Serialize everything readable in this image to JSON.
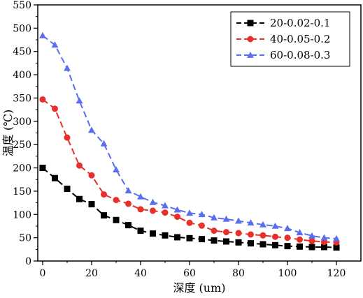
{
  "chart_data": {
    "type": "line",
    "xlabel": "深度 (um)",
    "ylabel": "温度 (℃)",
    "xlim": [
      -2,
      130
    ],
    "ylim": [
      0,
      550
    ],
    "xticks": [
      0,
      20,
      40,
      60,
      80,
      100,
      120
    ],
    "yticks": [
      0,
      50,
      100,
      150,
      200,
      250,
      300,
      350,
      400,
      450,
      500,
      550
    ],
    "grid": false,
    "legend_position": "top-right",
    "x": [
      0,
      5,
      10,
      15,
      20,
      25,
      30,
      35,
      40,
      45,
      50,
      55,
      60,
      65,
      70,
      75,
      80,
      85,
      90,
      95,
      100,
      105,
      110,
      115,
      120
    ],
    "series": [
      {
        "name": "20-0.02-0.1",
        "color": "#000000",
        "marker": "square",
        "values": [
          200,
          178,
          155,
          133,
          122,
          98,
          88,
          77,
          65,
          59,
          55,
          51,
          49,
          47,
          44,
          42,
          40,
          38,
          36,
          34,
          32,
          31,
          30,
          30,
          29
        ]
      },
      {
        "name": "40-0.05-0.2",
        "color": "#e8302a",
        "marker": "circle",
        "values": [
          347,
          327,
          265,
          205,
          184,
          143,
          131,
          123,
          111,
          108,
          104,
          95,
          82,
          76,
          65,
          62,
          60,
          57,
          55,
          52,
          50,
          46,
          43,
          41,
          40
        ]
      },
      {
        "name": "60-0.08-0.3",
        "color": "#5a6ef0",
        "marker": "triangle",
        "values": [
          484,
          464,
          414,
          344,
          281,
          252,
          196,
          151,
          138,
          126,
          119,
          110,
          103,
          100,
          93,
          90,
          86,
          82,
          78,
          75,
          70,
          61,
          54,
          50,
          48
        ]
      }
    ]
  }
}
